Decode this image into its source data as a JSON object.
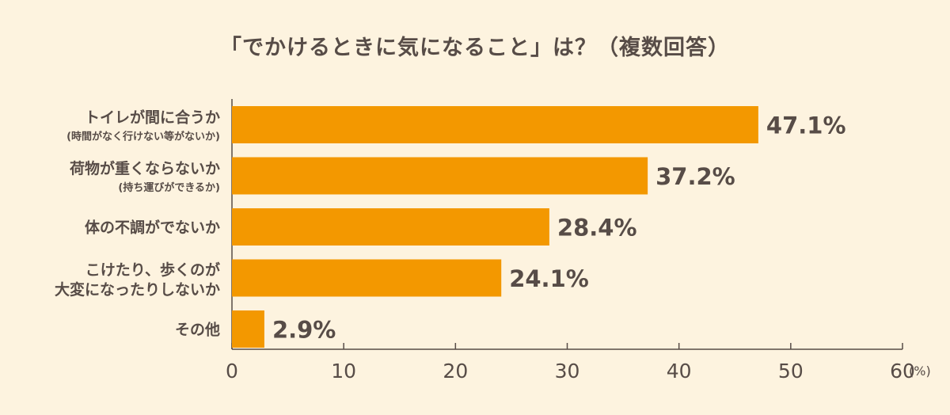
{
  "chart_data": {
    "type": "bar",
    "orientation": "horizontal",
    "title": "「でかけるときに気になること」は？（複数回答）",
    "categories": [
      {
        "main": "トイレが間に合うか",
        "sub": "(時間がなく行けない等がないか)"
      },
      {
        "main": "荷物が重くならないか",
        "sub": "(持ち運びができるか)"
      },
      {
        "main": "体の不調がでないか",
        "sub": ""
      },
      {
        "main": "こけたり、歩くのが",
        "sub": "大変になったりしないか",
        "two_line": true
      },
      {
        "main": "その他",
        "sub": ""
      }
    ],
    "values": [
      47.1,
      37.2,
      28.4,
      24.1,
      2.9
    ],
    "data_labels": [
      "47.1%",
      "37.2%",
      "28.4%",
      "24.1%",
      "2.9%"
    ],
    "xlim": [
      0,
      60
    ],
    "xticks": [
      0,
      10,
      20,
      30,
      40,
      50,
      60
    ],
    "xlabel_unit": "(%)",
    "grid": false,
    "colors": {
      "bar": "#F39800",
      "text": "#574c47",
      "background": "#FDF3DF"
    }
  }
}
